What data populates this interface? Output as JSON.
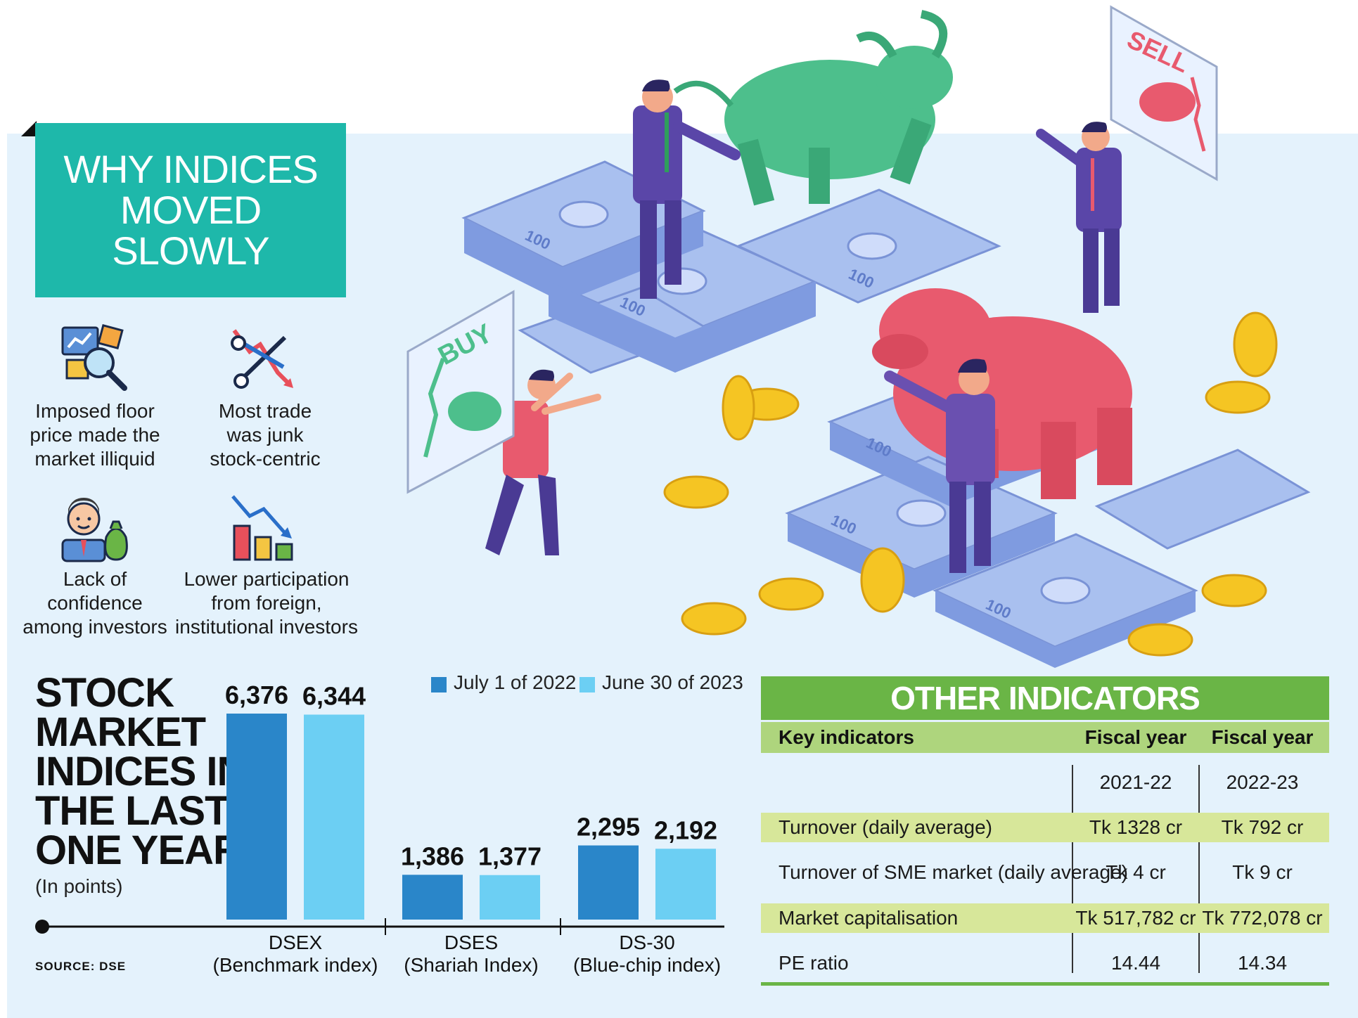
{
  "title": {
    "lines": [
      "WHY INDICES",
      "MOVED",
      "SLOWLY"
    ]
  },
  "reasons": [
    {
      "icon": "analysis-icon",
      "lines": [
        "Imposed floor",
        "price made the",
        "market illiquid"
      ]
    },
    {
      "icon": "scissors-chart-icon",
      "lines": [
        "Most trade",
        "was junk",
        "stock-centric"
      ]
    },
    {
      "icon": "worried-investor-icon",
      "lines": [
        "Lack of",
        "confidence",
        "among investors"
      ]
    },
    {
      "icon": "falling-bars-icon",
      "lines": [
        "Lower participation",
        "from foreign,",
        "institutional investors"
      ]
    }
  ],
  "illustration": {
    "sign_buy": "BUY",
    "sign_sell": "SELL",
    "banknote": "100"
  },
  "chart_data": {
    "type": "bar",
    "title_lines": [
      "STOCK",
      "MARKET",
      "INDICES IN",
      "THE LAST",
      "ONE YEAR"
    ],
    "subtitle": "(In points)",
    "categories": [
      {
        "name": "DSEX",
        "desc": "(Benchmark index)"
      },
      {
        "name": "DSES",
        "desc": "(Shariah Index)"
      },
      {
        "name": "DS-30",
        "desc": "(Blue-chip index)"
      }
    ],
    "series": [
      {
        "name": "July 1 of 2022",
        "color": "#2a86c9",
        "values": [
          6376,
          1386,
          2295
        ],
        "labels": [
          "6,376",
          "1,386",
          "2,295"
        ]
      },
      {
        "name": "June 30 of 2023",
        "color": "#6ccff3",
        "values": [
          6344,
          1377,
          2192
        ],
        "labels": [
          "6,344",
          "1,377",
          "2,192"
        ]
      }
    ],
    "source": "SOURCE: DSE"
  },
  "table": {
    "title": "OTHER INDICATORS",
    "headers": [
      "Key indicators",
      "Fiscal year",
      "Fiscal year"
    ],
    "years": [
      "2021-22",
      "2022-23"
    ],
    "rows": [
      [
        "Turnover (daily average)",
        "Tk 1328 cr",
        "Tk 792 cr"
      ],
      [
        "Turnover of SME market (daily average)",
        "Tk 4 cr",
        "Tk 9 cr"
      ],
      [
        "Market capitalisation",
        "Tk 517,782 cr",
        "Tk 772,078 cr"
      ],
      [
        "PE ratio",
        "14.44",
        "14.34"
      ]
    ]
  }
}
